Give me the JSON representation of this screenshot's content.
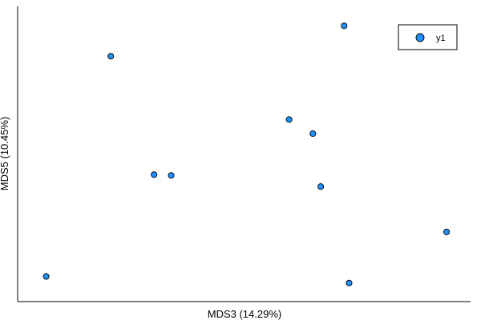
{
  "chart_data": {
    "type": "scatter",
    "xlabel": "MDS3 (14.29%)",
    "ylabel": "MDS5 (10.45%)",
    "xlim": [
      0,
      1
    ],
    "ylim": [
      0,
      1
    ],
    "x_ticks": "none",
    "y_ticks": "none",
    "grid": false,
    "legend": {
      "placement": "top-right",
      "entries": [
        "y1"
      ]
    },
    "series": [
      {
        "name": "y1",
        "color": "#1e90ff",
        "points": [
          {
            "x": 0.025,
            "y": 0.049
          },
          {
            "x": 0.18,
            "y": 0.86
          },
          {
            "x": 0.284,
            "y": 0.424
          },
          {
            "x": 0.325,
            "y": 0.421
          },
          {
            "x": 0.608,
            "y": 0.627
          },
          {
            "x": 0.665,
            "y": 0.575
          },
          {
            "x": 0.684,
            "y": 0.38
          },
          {
            "x": 0.74,
            "y": 0.972
          },
          {
            "x": 0.752,
            "y": 0.025
          },
          {
            "x": 0.986,
            "y": 0.213
          }
        ]
      }
    ]
  }
}
